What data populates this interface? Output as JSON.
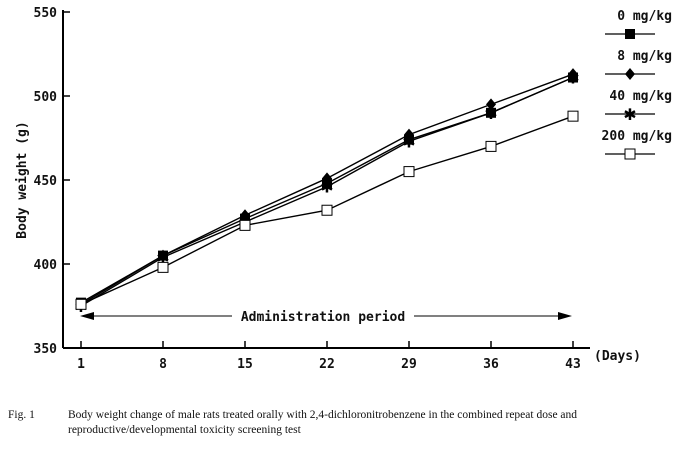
{
  "chart_data": {
    "type": "line",
    "x": [
      1,
      8,
      15,
      22,
      29,
      36,
      43
    ],
    "xlabel": "(Days)",
    "ylabel": "Body weight (g)",
    "ylim": [
      350,
      550
    ],
    "yticks": [
      350,
      400,
      450,
      500,
      550
    ],
    "annotation": "Administration period",
    "legend_position": "right",
    "series": [
      {
        "name": "0 mg/kg",
        "marker": "filled-square",
        "values": [
          377,
          405,
          427,
          448,
          474,
          490,
          511
        ]
      },
      {
        "name": "8 mg/kg",
        "marker": "diamond",
        "values": [
          376,
          405,
          429,
          451,
          477,
          495,
          513
        ]
      },
      {
        "name": "40 mg/kg",
        "marker": "star",
        "values": [
          375,
          404,
          425,
          446,
          473,
          490,
          511
        ]
      },
      {
        "name": "200 mg/kg",
        "marker": "open-square",
        "values": [
          376,
          398,
          423,
          432,
          455,
          470,
          488
        ]
      }
    ]
  },
  "caption": {
    "label": "Fig. 1",
    "text": "Body weight change of male rats treated orally with 2,4-dichloronitrobenzene in the combined repeat dose and reproductive/developmental toxicity screening test"
  }
}
